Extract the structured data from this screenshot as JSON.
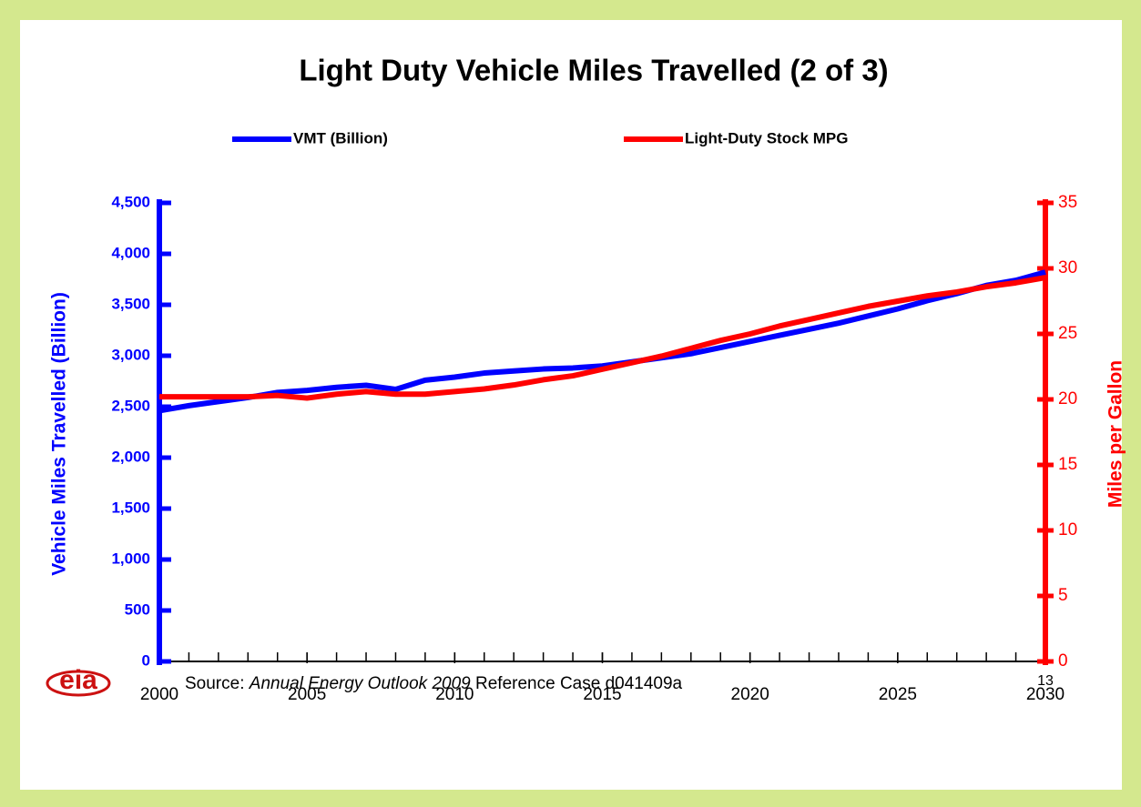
{
  "chart_data": {
    "type": "line",
    "title": "Light Duty Vehicle Miles Travelled (2 of 3)",
    "x": [
      2000,
      2001,
      2002,
      2003,
      2004,
      2005,
      2006,
      2007,
      2008,
      2009,
      2010,
      2011,
      2012,
      2013,
      2014,
      2015,
      2016,
      2017,
      2018,
      2019,
      2020,
      2021,
      2022,
      2023,
      2024,
      2025,
      2026,
      2027,
      2028,
      2029,
      2030
    ],
    "series": [
      {
        "name": "VMT (Billion)",
        "color": "#0000ff",
        "axis": "y",
        "values": [
          2460,
          2510,
          2550,
          2590,
          2640,
          2660,
          2690,
          2710,
          2670,
          2760,
          2790,
          2830,
          2850,
          2870,
          2880,
          2900,
          2940,
          2980,
          3020,
          3080,
          3140,
          3200,
          3260,
          3320,
          3390,
          3460,
          3540,
          3610,
          3690,
          3740,
          3820
        ]
      },
      {
        "name": "Light-Duty Stock MPG",
        "color": "#ff0000",
        "axis": "y2",
        "values": [
          20.2,
          20.2,
          20.2,
          20.2,
          20.3,
          20.1,
          20.4,
          20.6,
          20.4,
          20.4,
          20.6,
          20.8,
          21.1,
          21.5,
          21.8,
          22.3,
          22.8,
          23.3,
          23.9,
          24.5,
          25.0,
          25.6,
          26.1,
          26.6,
          27.1,
          27.5,
          27.9,
          28.2,
          28.6,
          28.9,
          29.3
        ]
      }
    ],
    "xlim": [
      2000,
      2030
    ],
    "xticks": [
      2000,
      2005,
      2010,
      2015,
      2020,
      2025,
      2030
    ],
    "ylim": [
      0,
      4500
    ],
    "yticks": [
      0,
      500,
      {
        "value": 1000,
        "label": "1,000"
      },
      {
        "value": 1500,
        "label": "1,500"
      },
      {
        "value": 2000,
        "label": "2,000"
      },
      {
        "value": 2500,
        "label": "2,500"
      },
      {
        "value": 3000,
        "label": "3,000"
      },
      {
        "value": 3500,
        "label": "3,500"
      },
      {
        "value": 4000,
        "label": "4,000"
      },
      {
        "value": 4500,
        "label": "4,500"
      }
    ],
    "y2lim": [
      0,
      35
    ],
    "y2ticks": [
      0,
      5,
      10,
      15,
      20,
      25,
      30,
      35
    ],
    "ylabel": "Vehicle Miles Travelled (Billion)",
    "y2label": "Miles per Gallon",
    "legend": "top",
    "grid": false
  },
  "footer": {
    "logo": "eia",
    "source_prefix": "Source:",
    "source_title": "Annual Energy Outlook 2009",
    "source_suffix": "Reference Case d041409a",
    "page": "13"
  }
}
